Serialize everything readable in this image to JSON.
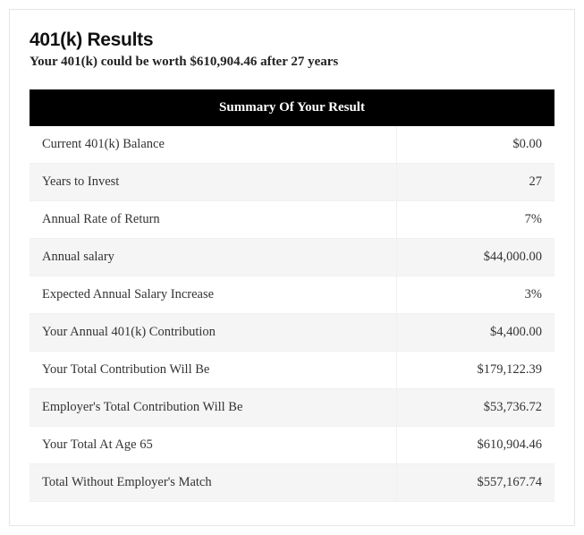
{
  "card": {
    "title": "401(k) Results",
    "subtitle": "Your 401(k) could be worth $610,904.46 after 27 years",
    "table_header": "Summary Of Your Result",
    "colors": {
      "header_bg": "#000000",
      "header_text": "#ffffff",
      "row_even_bg": "#ffffff",
      "row_odd_bg": "#f5f5f5",
      "border": "#e6e6e6",
      "text": "#333333",
      "title_text": "#111111"
    },
    "label_col_width_pct": 70,
    "value_col_width_pct": 30,
    "rows": [
      {
        "label": "Current 401(k) Balance",
        "value": "$0.00"
      },
      {
        "label": "Years to Invest",
        "value": "27"
      },
      {
        "label": "Annual Rate of Return",
        "value": "7%"
      },
      {
        "label": "Annual salary",
        "value": "$44,000.00"
      },
      {
        "label": "Expected Annual Salary Increase",
        "value": "3%"
      },
      {
        "label": "Your Annual 401(k) Contribution",
        "value": "$4,400.00"
      },
      {
        "label": "Your Total Contribution Will Be",
        "value": "$179,122.39"
      },
      {
        "label": "Employer's Total Contribution Will Be",
        "value": "$53,736.72"
      },
      {
        "label": "Your Total At Age 65",
        "value": "$610,904.46"
      },
      {
        "label": "Total Without Employer's Match",
        "value": "$557,167.74"
      }
    ]
  }
}
